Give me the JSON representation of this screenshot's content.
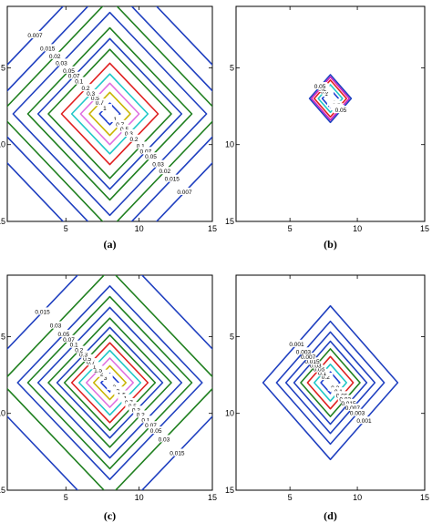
{
  "chart_data": [
    {
      "type": "contour",
      "panel_label": "(a)",
      "xlim": [
        1,
        15
      ],
      "ylim": [
        1,
        15
      ],
      "y_axis": "reversed",
      "x_ticks": [
        "5",
        "10",
        "15"
      ],
      "y_ticks": [
        "5",
        "10",
        "15"
      ],
      "center": [
        8,
        8
      ],
      "contours": [
        {
          "level": "1",
          "radius": 0.7,
          "color": "#1f3fd0"
        },
        {
          "level": "0.7",
          "radius": 1.4,
          "color": "#c8b400"
        },
        {
          "level": "0.5",
          "radius": 2.0,
          "color": "#e070e0"
        },
        {
          "level": "0.3",
          "radius": 2.6,
          "color": "#20c8c8"
        },
        {
          "level": "0.2",
          "radius": 3.3,
          "color": "#e02020"
        },
        {
          "level": "0.1",
          "radius": 4.2,
          "color": "#208020"
        },
        {
          "level": "0.07",
          "radius": 4.9,
          "color": "#2040c0"
        },
        {
          "level": "0.05",
          "radius": 5.6,
          "color": "#208020"
        },
        {
          "level": "0.03",
          "radius": 6.6,
          "color": "#2040c0"
        },
        {
          "level": "0.02",
          "radius": 7.5,
          "color": "#208020"
        },
        {
          "level": "0.015",
          "radius": 8.5,
          "color": "#2040c0"
        },
        {
          "level": "0.007",
          "radius": 10.2,
          "color": "#2040c0"
        }
      ]
    },
    {
      "type": "contour",
      "panel_label": "(b)",
      "xlim": [
        1,
        15
      ],
      "ylim": [
        1,
        15
      ],
      "y_axis": "reversed",
      "x_ticks": [
        "5",
        "10",
        "15"
      ],
      "y_ticks": [
        "5",
        "10",
        "15"
      ],
      "center": [
        8,
        7
      ],
      "contours": [
        {
          "level": "1",
          "radius": 0.6,
          "color": "#1f3fd0"
        },
        {
          "level": "0.5",
          "radius": 0.9,
          "color": "#20c8c8"
        },
        {
          "level": "0.2",
          "radius": 1.2,
          "color": "#e02020"
        },
        {
          "level": "0.1",
          "radius": 1.4,
          "color": "#d020c0"
        },
        {
          "level": "0.05",
          "radius": 1.55,
          "color": "#2040c0"
        }
      ]
    },
    {
      "type": "contour",
      "panel_label": "(c)",
      "xlim": [
        1,
        15
      ],
      "ylim": [
        1,
        15
      ],
      "y_axis": "reversed",
      "x_ticks": [
        "5",
        "10",
        "15"
      ],
      "y_ticks": [
        "5",
        "10",
        "15"
      ],
      "center": [
        8,
        8
      ],
      "contours": [
        {
          "level": "3",
          "radius": 0.6,
          "color": "#1f3fd0"
        },
        {
          "level": "2",
          "radius": 1.1,
          "color": "#c8b400"
        },
        {
          "level": "1.5",
          "radius": 1.6,
          "color": "#e070e0"
        },
        {
          "level": "1",
          "radius": 2.1,
          "color": "#20c8c8"
        },
        {
          "level": "0.7",
          "radius": 2.6,
          "color": "#e02020"
        },
        {
          "level": "0.5",
          "radius": 3.1,
          "color": "#208020"
        },
        {
          "level": "0.3",
          "radius": 3.6,
          "color": "#2040c0"
        },
        {
          "level": "0.2",
          "radius": 4.2,
          "color": "#208020"
        },
        {
          "level": "0.1",
          "radius": 4.9,
          "color": "#2040c0"
        },
        {
          "level": "0.07",
          "radius": 5.6,
          "color": "#208020"
        },
        {
          "level": "0.05",
          "radius": 6.3,
          "color": "#2040c0"
        },
        {
          "level": "0.03",
          "radius": 7.4,
          "color": "#208020"
        },
        {
          "level": "0.015",
          "radius": 9.2,
          "color": "#2040c0"
        }
      ]
    },
    {
      "type": "contour",
      "panel_label": "(d)",
      "xlim": [
        1,
        15
      ],
      "ylim": [
        1,
        15
      ],
      "y_axis": "reversed",
      "x_ticks": [
        "5",
        "10",
        "15"
      ],
      "y_ticks": [
        "5",
        "10",
        "15"
      ],
      "center": [
        8,
        8
      ],
      "contours": [
        {
          "level": "0.2",
          "radius": 0.7,
          "color": "#1f3fd0"
        },
        {
          "level": "0.1",
          "radius": 1.2,
          "color": "#20c8c8"
        },
        {
          "level": "0.05",
          "radius": 1.7,
          "color": "#e02020"
        },
        {
          "level": "0.03",
          "radius": 2.2,
          "color": "#208020"
        },
        {
          "level": "0.015",
          "radius": 2.7,
          "color": "#2040c0"
        },
        {
          "level": "0.007",
          "radius": 3.3,
          "color": "#2040c0"
        },
        {
          "level": "0.003",
          "radius": 4.0,
          "color": "#2040c0"
        },
        {
          "level": "0.001",
          "radius": 5.0,
          "color": "#2040c0"
        }
      ]
    }
  ]
}
